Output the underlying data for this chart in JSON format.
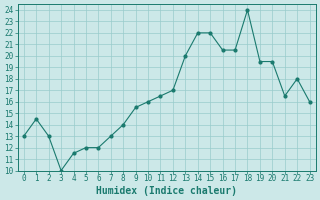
{
  "x": [
    0,
    1,
    2,
    3,
    4,
    5,
    6,
    7,
    8,
    9,
    10,
    11,
    12,
    13,
    14,
    15,
    16,
    17,
    18,
    19,
    20,
    21,
    22,
    23
  ],
  "y": [
    13,
    14.5,
    13,
    10,
    11.5,
    12,
    12,
    13,
    14,
    15.5,
    16,
    16.5,
    17,
    20,
    22,
    22,
    20.5,
    20.5,
    24,
    19.5,
    19.5,
    16.5,
    18,
    16
  ],
  "xlabel": "Humidex (Indice chaleur)",
  "ylim": [
    10,
    24.5
  ],
  "xlim": [
    -0.5,
    23.5
  ],
  "yticks": [
    10,
    11,
    12,
    13,
    14,
    15,
    16,
    17,
    18,
    19,
    20,
    21,
    22,
    23,
    24
  ],
  "xtick_labels": [
    "0",
    "1",
    "2",
    "3",
    "4",
    "5",
    "6",
    "7",
    "8",
    "9",
    "10",
    "11",
    "12",
    "13",
    "14",
    "15",
    "16",
    "17",
    "18",
    "19",
    "20",
    "21",
    "22",
    "23"
  ],
  "line_color": "#1a7a6e",
  "bg_color": "#cce8e8",
  "grid_color": "#99cccc",
  "tick_fontsize": 5.5,
  "xlabel_fontsize": 7.0
}
